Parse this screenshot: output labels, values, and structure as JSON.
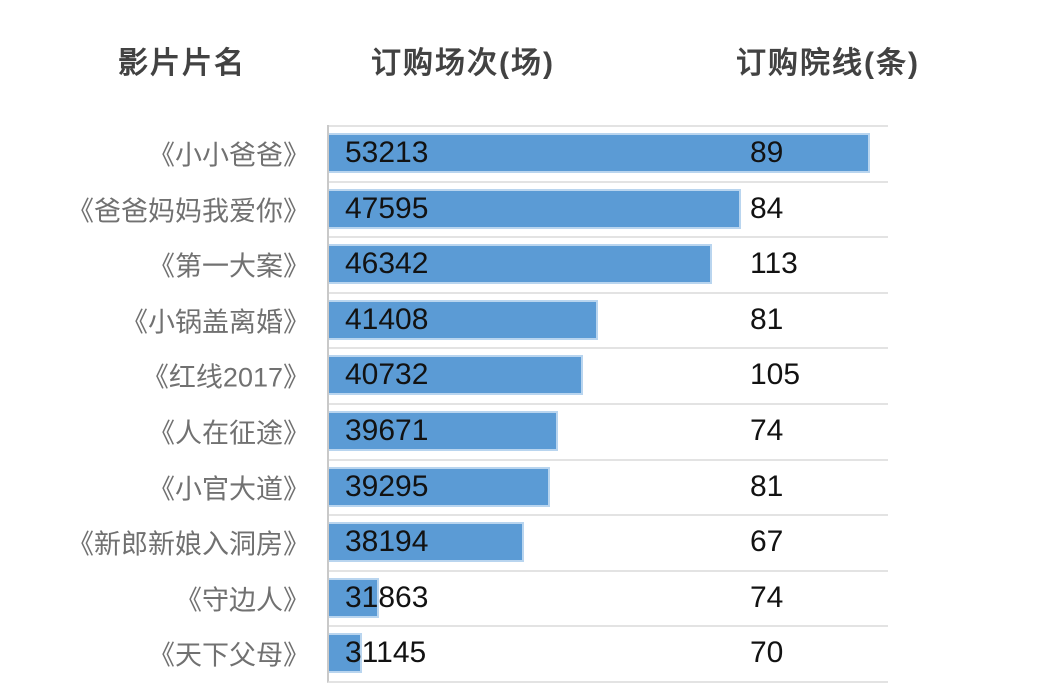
{
  "page": {
    "background": "#ffffff"
  },
  "chart_data": {
    "type": "bar",
    "orientation": "horizontal",
    "title": "",
    "columns": [
      "影片片名",
      "订购场次(场)",
      "订购院线(条)"
    ],
    "categories": [
      "《小小爸爸》",
      "《爸爸妈妈我爱你》",
      "《第一大案》",
      "《小锅盖离婚》",
      "《红线2017》",
      "《人在征途》",
      "《小官大道》",
      "《新郎新娘入洞房》",
      "《守边人》",
      "《天下父母》"
    ],
    "series": [
      {
        "name": "订购场次(场)",
        "values": [
          53213,
          47595,
          46342,
          41408,
          40732,
          39671,
          39295,
          38194,
          31863,
          31145
        ]
      },
      {
        "name": "订购院线(条)",
        "values": [
          89,
          84,
          113,
          81,
          105,
          74,
          81,
          67,
          74,
          70
        ]
      }
    ],
    "xlim": [
      29695,
      54000
    ],
    "legend": "none",
    "gridlines": "horizontal-row-separators",
    "colors": {
      "bar_fill": "#5B9BD5",
      "bar_border": "#B9D5EF",
      "separator": "#E3E3E3",
      "axis_line": "#C9C9C9",
      "header_text": "#424242",
      "label_text": "#717171",
      "value_text": "#121212"
    }
  }
}
